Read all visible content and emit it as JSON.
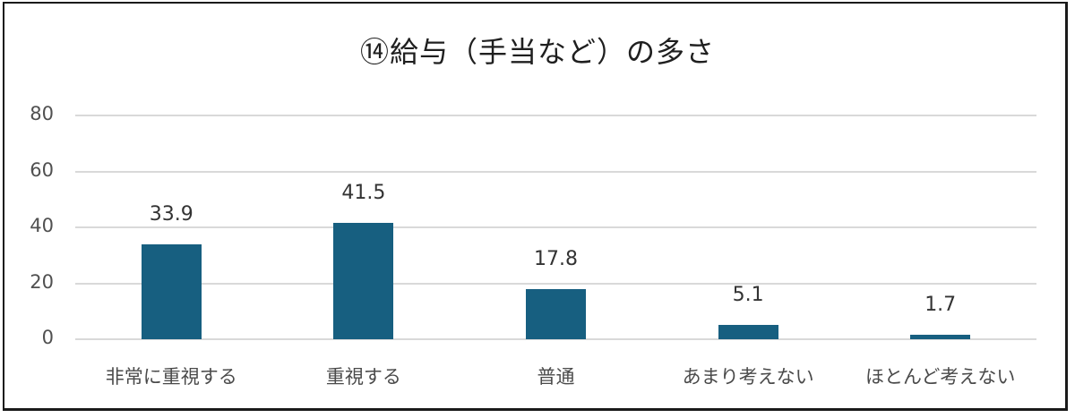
{
  "chart_data": {
    "type": "bar",
    "title": "⑭給与（手当など）の多さ",
    "categories": [
      "非常に重視する",
      "重視する",
      "普通",
      "あまり考えない",
      "ほとんど考えない"
    ],
    "values": [
      33.9,
      41.5,
      17.8,
      5.1,
      1.7
    ],
    "data_labels": [
      "33.9",
      "41.5",
      "17.8",
      "5.1",
      "1.7"
    ],
    "xlabel": "",
    "ylabel": "",
    "ylim": [
      0,
      80
    ],
    "yticks": [
      "0",
      "20",
      "40",
      "60",
      "80"
    ],
    "grid": true,
    "legend": null,
    "bar_color": "#175f80"
  }
}
